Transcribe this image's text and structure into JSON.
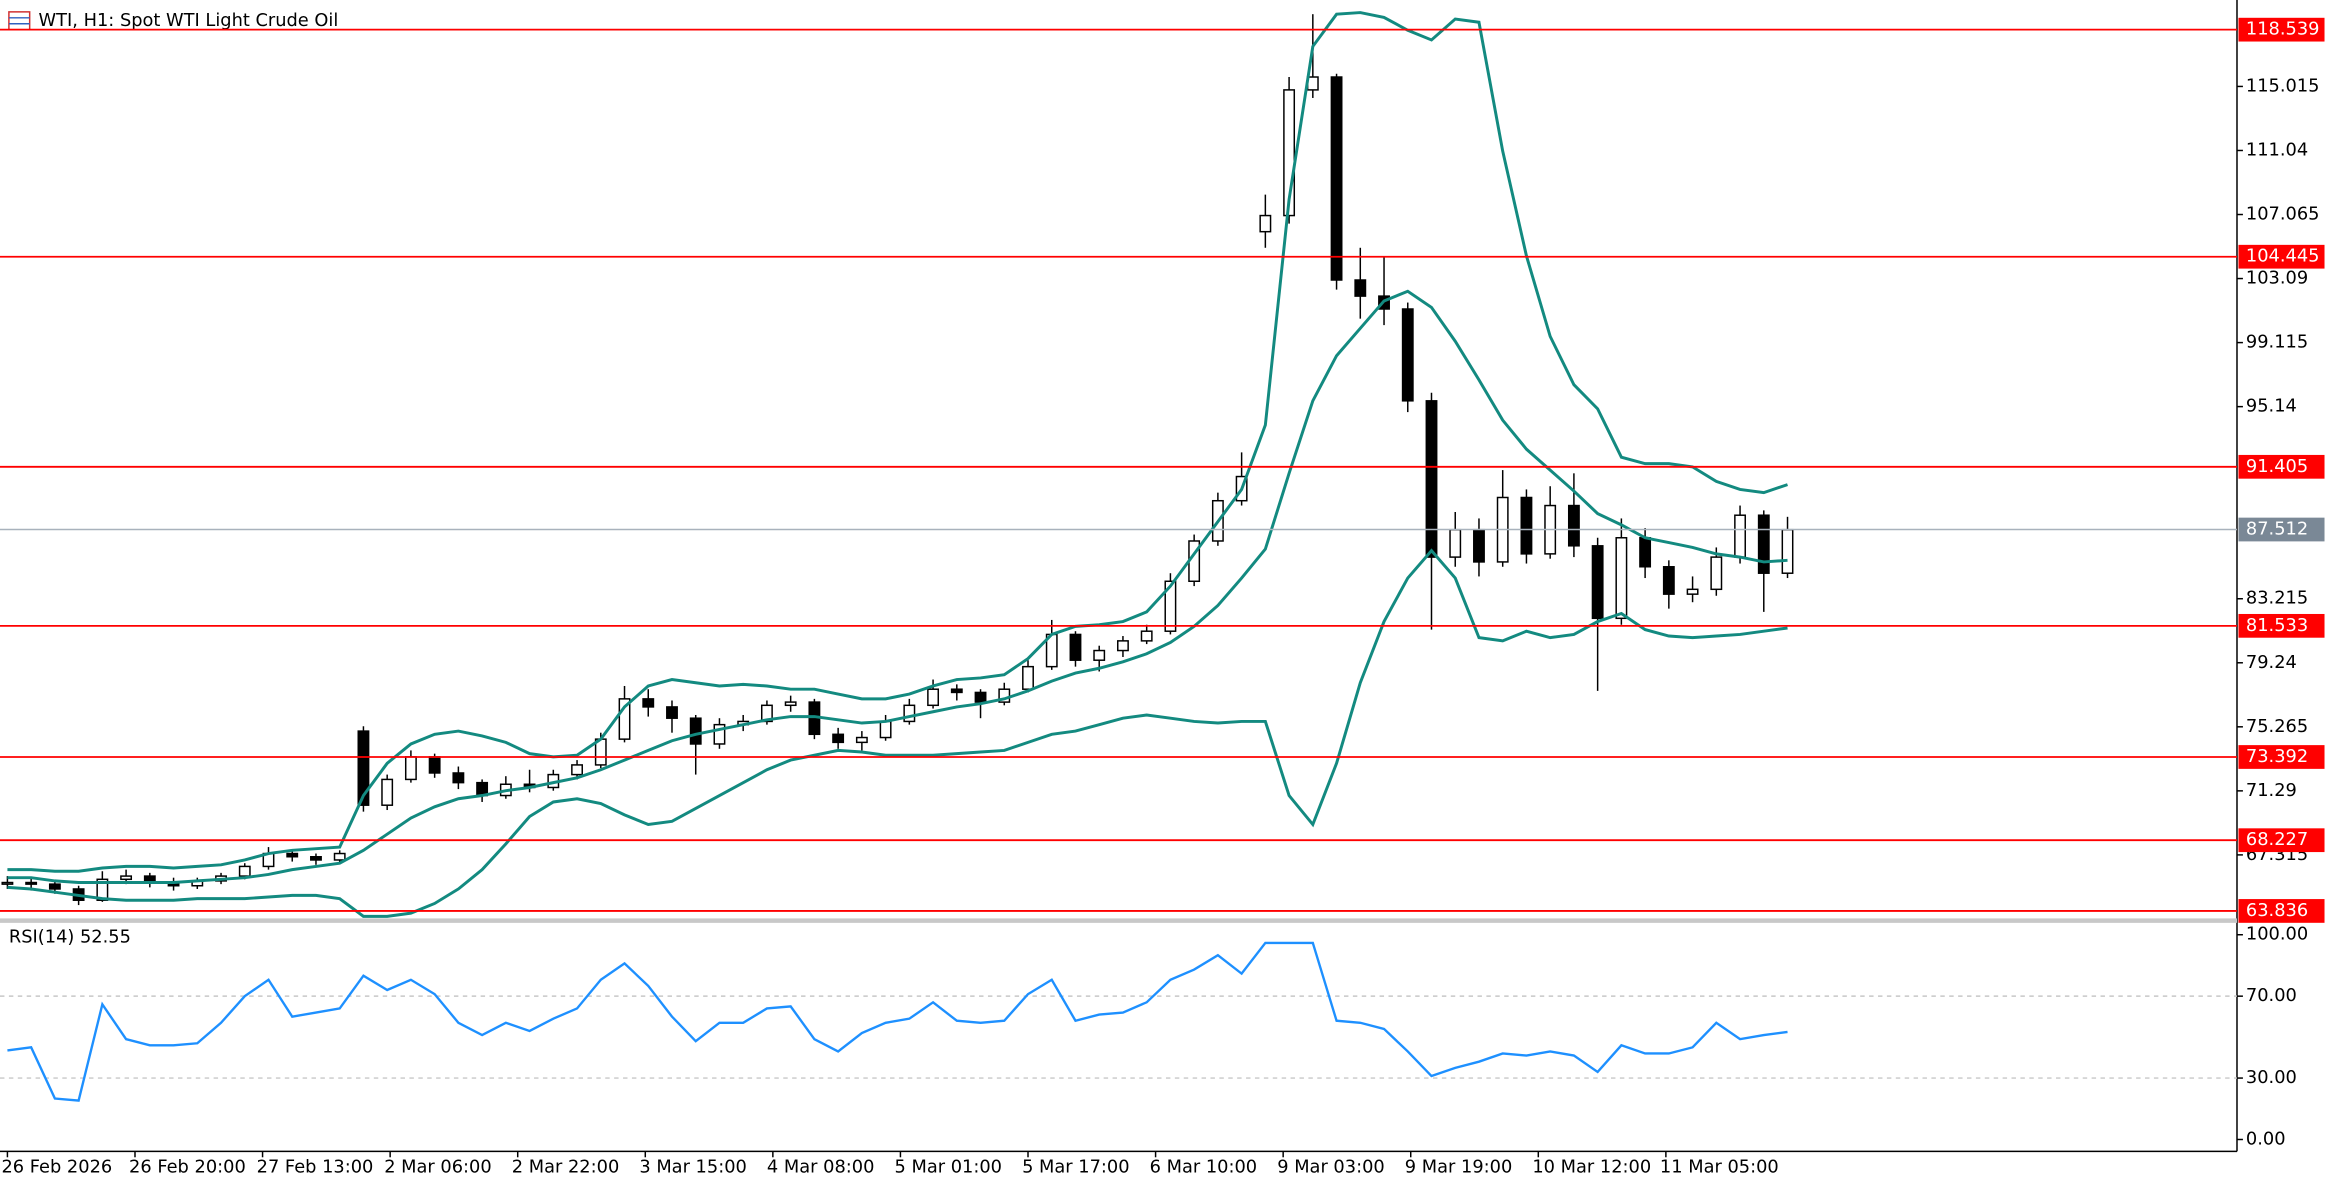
{
  "chart_data": [
    {
      "type": "candlestick",
      "title": "WTI, H1:  Spot WTI Light Crude Oil",
      "ylim": [
        63.28,
        119.92
      ],
      "yticks": [
        67.315,
        71.29,
        75.265,
        79.24,
        83.215,
        95.14,
        99.115,
        103.09,
        107.065,
        111.04,
        115.015
      ],
      "x_labels": [
        "26 Feb 2026",
        "26 Feb 20:00",
        "27 Feb 13:00",
        "2 Mar 06:00",
        "2 Mar 22:00",
        "3 Mar 15:00",
        "4 Mar 08:00",
        "5 Mar 01:00",
        "5 Mar 17:00",
        "6 Mar 10:00",
        "9 Mar 03:00",
        "9 Mar 19:00",
        "10 Mar 12:00",
        "11 Mar 05:00"
      ],
      "levels": [
        118.539,
        104.445,
        91.405,
        81.533,
        73.392,
        68.227,
        63.836
      ],
      "level_color": "#ff0000",
      "last_price": 87.512,
      "candles": [
        [
          65.5,
          66.0,
          65.2,
          65.6
        ],
        [
          65.6,
          65.9,
          65.1,
          65.5
        ],
        [
          65.5,
          65.7,
          64.9,
          65.2
        ],
        [
          65.2,
          65.4,
          64.2,
          64.5
        ],
        [
          64.5,
          66.3,
          64.4,
          65.8
        ],
        [
          65.8,
          66.4,
          65.5,
          66.0
        ],
        [
          66.0,
          66.2,
          65.3,
          65.6
        ],
        [
          65.6,
          65.9,
          65.1,
          65.4
        ],
        [
          65.4,
          65.9,
          65.2,
          65.7
        ],
        [
          65.7,
          66.2,
          65.5,
          66.0
        ],
        [
          66.0,
          66.8,
          65.8,
          66.6
        ],
        [
          66.6,
          67.8,
          66.4,
          67.4
        ],
        [
          67.4,
          67.6,
          66.9,
          67.2
        ],
        [
          67.2,
          67.4,
          66.7,
          67.0
        ],
        [
          67.0,
          67.6,
          66.8,
          67.4
        ],
        [
          75.0,
          75.3,
          70.0,
          70.4
        ],
        [
          70.4,
          72.3,
          70.1,
          72.0
        ],
        [
          72.0,
          73.8,
          71.8,
          73.4
        ],
        [
          73.4,
          73.6,
          72.1,
          72.4
        ],
        [
          72.4,
          72.8,
          71.4,
          71.8
        ],
        [
          71.8,
          72.0,
          70.6,
          71.0
        ],
        [
          71.0,
          72.2,
          70.8,
          71.7
        ],
        [
          71.7,
          72.6,
          71.2,
          71.5
        ],
        [
          71.5,
          72.6,
          71.3,
          72.3
        ],
        [
          72.3,
          73.2,
          72.0,
          72.9
        ],
        [
          72.9,
          74.9,
          72.7,
          74.5
        ],
        [
          74.5,
          77.8,
          74.3,
          77.0
        ],
        [
          77.0,
          77.6,
          75.9,
          76.5
        ],
        [
          76.5,
          76.9,
          74.9,
          75.8
        ],
        [
          75.8,
          76.0,
          72.3,
          74.2
        ],
        [
          74.2,
          75.8,
          73.9,
          75.4
        ],
        [
          75.4,
          76.0,
          75.0,
          75.6
        ],
        [
          75.6,
          76.9,
          75.4,
          76.6
        ],
        [
          76.6,
          77.2,
          76.2,
          76.8
        ],
        [
          76.8,
          77.0,
          74.5,
          74.8
        ],
        [
          74.8,
          75.2,
          73.9,
          74.3
        ],
        [
          74.3,
          75.0,
          73.8,
          74.6
        ],
        [
          74.6,
          76.0,
          74.4,
          75.6
        ],
        [
          75.6,
          77.0,
          75.4,
          76.6
        ],
        [
          76.6,
          78.2,
          76.4,
          77.6
        ],
        [
          77.6,
          77.9,
          76.9,
          77.4
        ],
        [
          77.4,
          77.6,
          75.8,
          76.8
        ],
        [
          76.8,
          78.0,
          76.6,
          77.6
        ],
        [
          77.6,
          79.4,
          77.4,
          79.0
        ],
        [
          79.0,
          81.9,
          78.8,
          81.0
        ],
        [
          81.0,
          81.2,
          79.0,
          79.4
        ],
        [
          79.4,
          80.3,
          78.7,
          80.0
        ],
        [
          80.0,
          80.9,
          79.6,
          80.6
        ],
        [
          80.6,
          81.6,
          80.4,
          81.2
        ],
        [
          81.2,
          84.8,
          81.0,
          84.3
        ],
        [
          84.3,
          87.2,
          84.0,
          86.8
        ],
        [
          86.8,
          89.8,
          86.5,
          89.3
        ],
        [
          89.3,
          92.3,
          89.0,
          90.8
        ],
        [
          106.0,
          108.3,
          105.0,
          107.0
        ],
        [
          107.0,
          115.6,
          106.5,
          114.8
        ],
        [
          114.8,
          119.5,
          114.3,
          115.6
        ],
        [
          115.6,
          115.8,
          102.4,
          103.0
        ],
        [
          103.0,
          105.0,
          100.6,
          102.0
        ],
        [
          102.0,
          104.4,
          100.2,
          101.2
        ],
        [
          101.2,
          101.6,
          94.8,
          95.5
        ],
        [
          95.5,
          96.0,
          81.3,
          85.8
        ],
        [
          85.8,
          88.6,
          85.2,
          87.5
        ],
        [
          87.5,
          88.2,
          84.6,
          85.5
        ],
        [
          85.5,
          91.2,
          85.2,
          89.5
        ],
        [
          89.5,
          90.0,
          85.4,
          86.0
        ],
        [
          86.0,
          90.2,
          85.7,
          89.0
        ],
        [
          89.0,
          91.0,
          85.8,
          86.5
        ],
        [
          86.5,
          87.0,
          77.5,
          82.0
        ],
        [
          82.0,
          88.2,
          81.6,
          87.0
        ],
        [
          87.0,
          87.6,
          84.5,
          85.2
        ],
        [
          85.2,
          85.6,
          82.6,
          83.5
        ],
        [
          83.5,
          84.6,
          83.0,
          83.8
        ],
        [
          83.8,
          86.4,
          83.4,
          85.8
        ],
        [
          85.8,
          89.0,
          85.4,
          88.4
        ],
        [
          88.4,
          88.7,
          82.4,
          84.8
        ],
        [
          84.8,
          88.3,
          84.5,
          87.5
        ]
      ],
      "series": [
        {
          "color": "#138a80",
          "values": [
            66.4,
            66.4,
            66.3,
            66.3,
            66.5,
            66.6,
            66.6,
            66.5,
            66.6,
            66.7,
            67.0,
            67.4,
            67.6,
            67.7,
            67.8,
            71.0,
            73.0,
            74.2,
            74.8,
            75.0,
            74.7,
            74.3,
            73.6,
            73.4,
            73.5,
            74.5,
            76.5,
            77.8,
            78.2,
            78.0,
            77.8,
            77.9,
            77.8,
            77.6,
            77.6,
            77.3,
            77.0,
            77.0,
            77.3,
            77.8,
            78.2,
            78.3,
            78.5,
            79.5,
            81.0,
            81.5,
            81.6,
            81.8,
            82.4,
            84.0,
            86.0,
            88.0,
            90.0,
            94.0,
            108.0,
            117.5,
            119.5,
            119.6,
            119.3,
            118.5,
            117.9,
            119.2,
            119.0,
            111.0,
            104.5,
            99.5,
            96.5,
            95.0,
            92.0,
            91.6,
            91.6,
            91.4,
            90.5,
            90.0,
            89.8,
            90.3
          ]
        },
        {
          "color": "#138a80",
          "values": [
            65.9,
            65.9,
            65.7,
            65.6,
            65.6,
            65.6,
            65.6,
            65.6,
            65.7,
            65.8,
            65.9,
            66.1,
            66.4,
            66.6,
            66.8,
            67.6,
            68.6,
            69.6,
            70.3,
            70.8,
            71.0,
            71.3,
            71.5,
            71.8,
            72.1,
            72.6,
            73.2,
            73.8,
            74.4,
            74.8,
            75.1,
            75.4,
            75.7,
            75.9,
            75.9,
            75.7,
            75.5,
            75.6,
            75.9,
            76.2,
            76.5,
            76.7,
            77.0,
            77.5,
            78.1,
            78.6,
            78.9,
            79.3,
            79.8,
            80.5,
            81.5,
            82.8,
            84.5,
            86.3,
            91.0,
            95.5,
            98.3,
            100.0,
            101.7,
            102.3,
            101.3,
            99.2,
            96.8,
            94.3,
            92.5,
            91.2,
            89.9,
            88.5,
            87.8,
            87.0,
            86.7,
            86.4,
            86.0,
            85.8,
            85.5,
            85.6
          ]
        },
        {
          "color": "#138a80",
          "values": [
            65.3,
            65.2,
            65.0,
            64.8,
            64.6,
            64.5,
            64.5,
            64.5,
            64.6,
            64.6,
            64.6,
            64.7,
            64.8,
            64.8,
            64.6,
            63.5,
            63.5,
            63.7,
            64.3,
            65.2,
            66.4,
            68.0,
            69.7,
            70.6,
            70.8,
            70.5,
            69.8,
            69.2,
            69.4,
            70.2,
            71.0,
            71.8,
            72.6,
            73.2,
            73.5,
            73.8,
            73.7,
            73.5,
            73.5,
            73.5,
            73.6,
            73.7,
            73.8,
            74.3,
            74.8,
            75.0,
            75.4,
            75.8,
            76.0,
            75.8,
            75.6,
            75.5,
            75.6,
            75.6,
            71.0,
            69.2,
            73.0,
            78.0,
            81.8,
            84.5,
            86.2,
            84.5,
            80.8,
            80.6,
            81.2,
            80.8,
            81.0,
            81.8,
            82.3,
            81.3,
            80.9,
            80.8,
            80.9,
            81.0,
            81.2,
            81.4
          ]
        }
      ]
    },
    {
      "type": "line",
      "title": "RSI(14) 52.55",
      "ylim": [
        0,
        100
      ],
      "yticks": [
        {
          "value": 100,
          "label": "100.00"
        },
        {
          "value": 70,
          "label": "70.00"
        },
        {
          "value": 30,
          "label": "30.00"
        },
        {
          "value": 0,
          "label": "0.00"
        }
      ],
      "levels": [
        70,
        30
      ],
      "color": "#1e90ff",
      "values": [
        43.5,
        45,
        20,
        19,
        66,
        49,
        46,
        46,
        47,
        57,
        70,
        78,
        60,
        62,
        64,
        80,
        73,
        78,
        71,
        57,
        51,
        57,
        53,
        59,
        64,
        78,
        86,
        75,
        60,
        48,
        57,
        57,
        64,
        65,
        49,
        43,
        52,
        57,
        59,
        67,
        58,
        57,
        58,
        71,
        78,
        58,
        61,
        62,
        67,
        78,
        83,
        90,
        81,
        96,
        96,
        96,
        58,
        57,
        54,
        43,
        31,
        35,
        38,
        42,
        41,
        43,
        41,
        33,
        46,
        42,
        42,
        45,
        57,
        49,
        51,
        52.55
      ]
    }
  ]
}
